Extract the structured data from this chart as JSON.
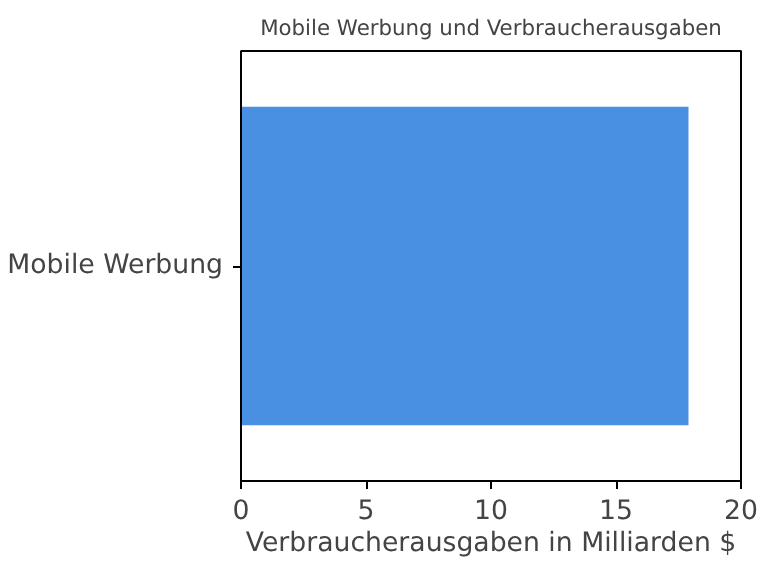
{
  "chart_data": {
    "type": "bar",
    "orientation": "horizontal",
    "title": "Mobile Werbung und Verbraucherausgaben",
    "xlabel": "Verbraucherausgaben in Milliarden $",
    "categories": [
      "Mobile Werbung"
    ],
    "series": [
      {
        "color": "#4a90e2",
        "values": [
          17.9
        ]
      }
    ],
    "xlim": [
      0,
      20
    ],
    "xticks": [
      0,
      5,
      10,
      15,
      20
    ],
    "grid": false
  }
}
